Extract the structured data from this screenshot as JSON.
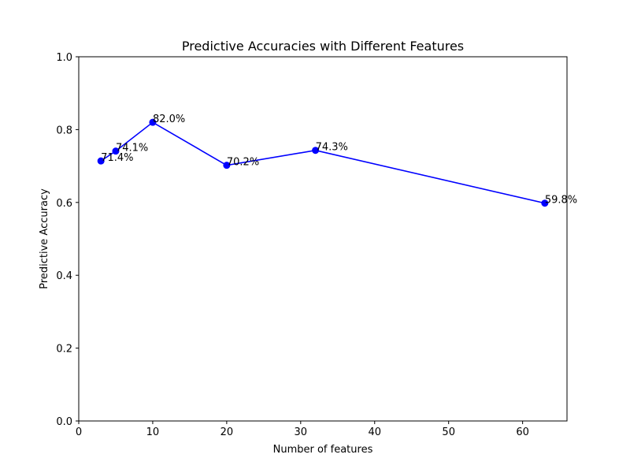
{
  "chart_data": {
    "type": "line",
    "title": "Predictive Accuracies with Different Features",
    "xlabel": "Number of features",
    "ylabel": "Predictive Accuracy",
    "xlim": [
      0,
      66
    ],
    "ylim": [
      0,
      1.0
    ],
    "x_ticks": [
      0,
      10,
      20,
      30,
      40,
      50,
      60
    ],
    "y_ticks": [
      0.0,
      0.2,
      0.4,
      0.6,
      0.8,
      1.0
    ],
    "x_tick_labels": [
      "0",
      "10",
      "20",
      "30",
      "40",
      "50",
      "60"
    ],
    "y_tick_labels": [
      "0.0",
      "0.2",
      "0.4",
      "0.6",
      "0.8",
      "1.0"
    ],
    "grid": false,
    "series": [
      {
        "color": "#0000ff",
        "marker": "circle",
        "points": [
          {
            "x": 3,
            "y": 0.714,
            "label": "71.4%"
          },
          {
            "x": 5,
            "y": 0.741,
            "label": "74.1%"
          },
          {
            "x": 10,
            "y": 0.82,
            "label": "82.0%"
          },
          {
            "x": 20,
            "y": 0.702,
            "label": "70.2%"
          },
          {
            "x": 32,
            "y": 0.743,
            "label": "74.3%"
          },
          {
            "x": 63,
            "y": 0.598,
            "label": "59.8%"
          }
        ]
      }
    ]
  }
}
